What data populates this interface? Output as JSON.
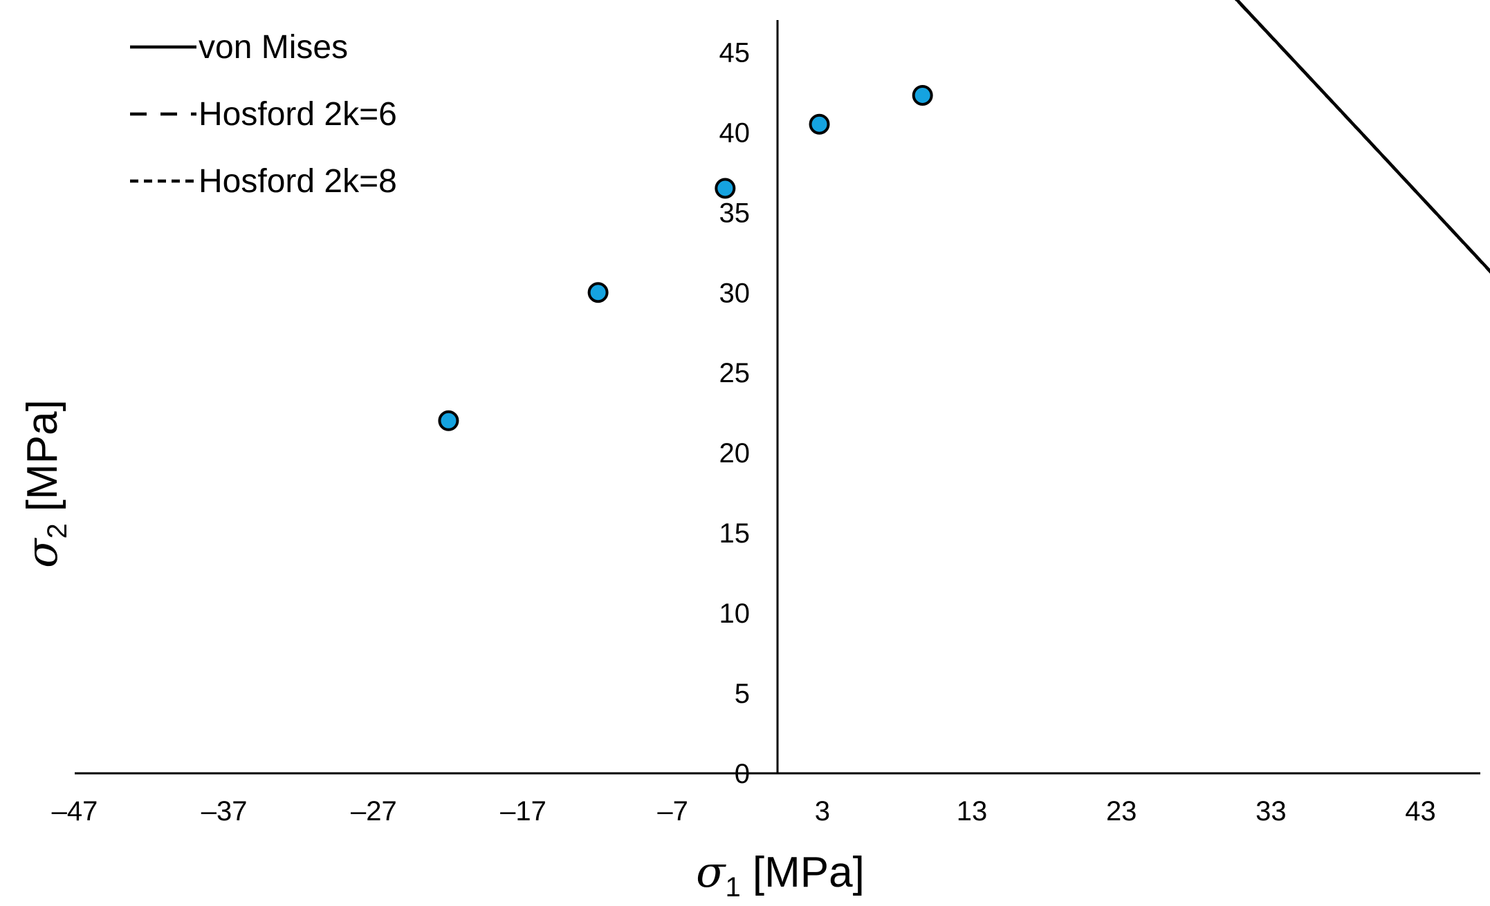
{
  "chart_data": {
    "type": "line",
    "title": "",
    "xlabel": {
      "symbol": "σ",
      "sub": "1",
      "unit": " [MPa]"
    },
    "ylabel": {
      "symbol": "σ",
      "sub": "2",
      "unit": " [MPa]"
    },
    "xlim": [
      -47,
      47
    ],
    "ylim": [
      0,
      47
    ],
    "xticks": [
      -47,
      -37,
      -27,
      -17,
      -7,
      3,
      13,
      23,
      33,
      43
    ],
    "xtick_labels": [
      "–47",
      "–37",
      "–27",
      "–17",
      "–7",
      "3",
      "13",
      "23",
      "33",
      "43"
    ],
    "yticks": [
      0,
      5,
      10,
      15,
      20,
      25,
      30,
      35,
      40,
      45
    ],
    "ytick_labels": [
      "0",
      "5",
      "10",
      "15",
      "20",
      "25",
      "30",
      "35",
      "40",
      "45"
    ],
    "grid": false,
    "legend_position": "top-left",
    "model_params": {
      "sigma_t": 39.5,
      "sigma_c": 39.5,
      "tilt_a": 0.525
    },
    "series": [
      {
        "name": "von Mises",
        "style": "solid",
        "exponent": 2
      },
      {
        "name": "Hosford 2k=6",
        "style": "dashed",
        "exponent": 6
      },
      {
        "name": "Hosford 2k=8",
        "style": "dotted",
        "exponent": 8
      }
    ],
    "experimental_points": {
      "color": "#15a3e0",
      "x": [
        -22,
        -12,
        -3.5,
        2.8,
        9.7
      ],
      "y": [
        22,
        30,
        36.5,
        40.5,
        42.3
      ]
    }
  }
}
